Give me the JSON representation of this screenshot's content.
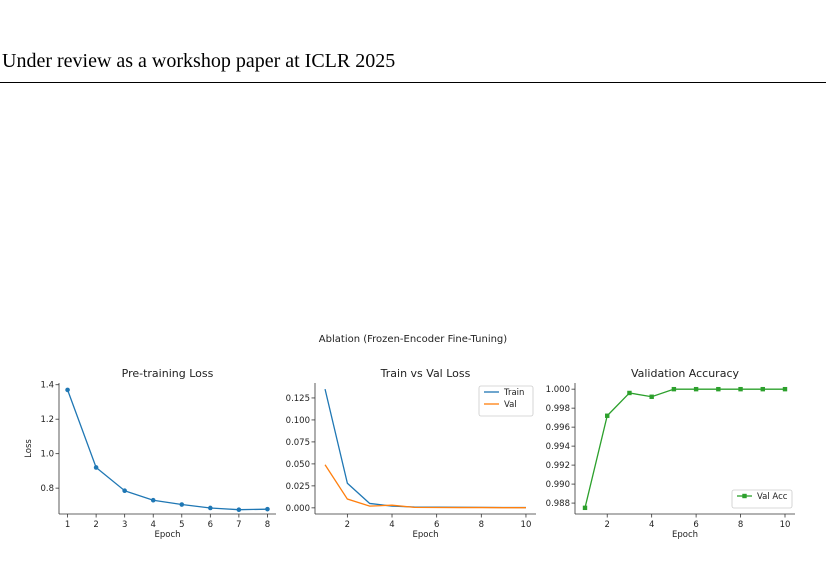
{
  "header": {
    "text": "Under review as a workshop paper at ICLR 2025"
  },
  "figure": {
    "suptitle": "Ablation (Frozen-Encoder Fine-Tuning)"
  },
  "chart_data": [
    {
      "type": "line",
      "title": "Pre-training Loss",
      "xlabel": "Epoch",
      "ylabel": "Loss",
      "xlim": [
        0.7,
        8.3
      ],
      "ylim": [
        0.65,
        1.41
      ],
      "xticks": [
        1,
        2,
        3,
        4,
        5,
        6,
        7,
        8
      ],
      "yticks": [
        0.8,
        1.0,
        1.2,
        1.4
      ],
      "grid": false,
      "series": [
        {
          "x": [
            1,
            2,
            3,
            4,
            5,
            6,
            7,
            8
          ],
          "values": [
            1.37,
            0.92,
            0.785,
            0.73,
            0.705,
            0.685,
            0.675,
            0.678
          ],
          "color": "#1f77b4",
          "marker": "circle"
        }
      ]
    },
    {
      "type": "line",
      "title": "Train vs Val Loss",
      "xlabel": "Epoch",
      "ylabel": "",
      "xlim": [
        0.55,
        10.45
      ],
      "ylim": [
        -0.007,
        0.142
      ],
      "xticks": [
        2,
        4,
        6,
        8,
        10
      ],
      "yticks": [
        0.0,
        0.025,
        0.05,
        0.075,
        0.1,
        0.125
      ],
      "ytick_labels": [
        "0.000",
        "0.025",
        "0.050",
        "0.075",
        "0.100",
        "0.125"
      ],
      "grid": false,
      "legend": "top-right",
      "series": [
        {
          "name": "Train",
          "x": [
            1,
            2,
            3,
            4,
            5,
            6,
            7,
            8,
            9,
            10
          ],
          "values": [
            0.135,
            0.028,
            0.005,
            0.002,
            0.001,
            0.0008,
            0.0006,
            0.0005,
            0.0004,
            0.0003
          ],
          "color": "#1f77b4"
        },
        {
          "name": "Val",
          "x": [
            1,
            2,
            3,
            4,
            5,
            6,
            7,
            8,
            9,
            10
          ],
          "values": [
            0.049,
            0.01,
            0.002,
            0.003,
            0.0005,
            0.0004,
            0.0003,
            0.0003,
            0.0002,
            0.0002
          ],
          "color": "#ff7f0e"
        }
      ]
    },
    {
      "type": "line",
      "title": "Validation Accuracy",
      "xlabel": "Epoch",
      "ylabel": "",
      "xlim": [
        0.55,
        10.45
      ],
      "ylim": [
        0.98685,
        1.00065
      ],
      "xticks": [
        2,
        4,
        6,
        8,
        10
      ],
      "yticks": [
        0.988,
        0.99,
        0.992,
        0.994,
        0.996,
        0.998,
        1.0
      ],
      "ytick_labels": [
        "0.988",
        "0.990",
        "0.992",
        "0.994",
        "0.996",
        "0.998",
        "1.000"
      ],
      "grid": false,
      "legend": "bottom-right",
      "series": [
        {
          "name": "Val Acc",
          "x": [
            1,
            2,
            3,
            4,
            5,
            6,
            7,
            8,
            9,
            10
          ],
          "values": [
            0.9875,
            0.9972,
            0.9996,
            0.9992,
            1.0,
            1.0,
            1.0,
            1.0,
            1.0,
            1.0
          ],
          "color": "#2ca02c",
          "marker": "square"
        }
      ]
    }
  ]
}
